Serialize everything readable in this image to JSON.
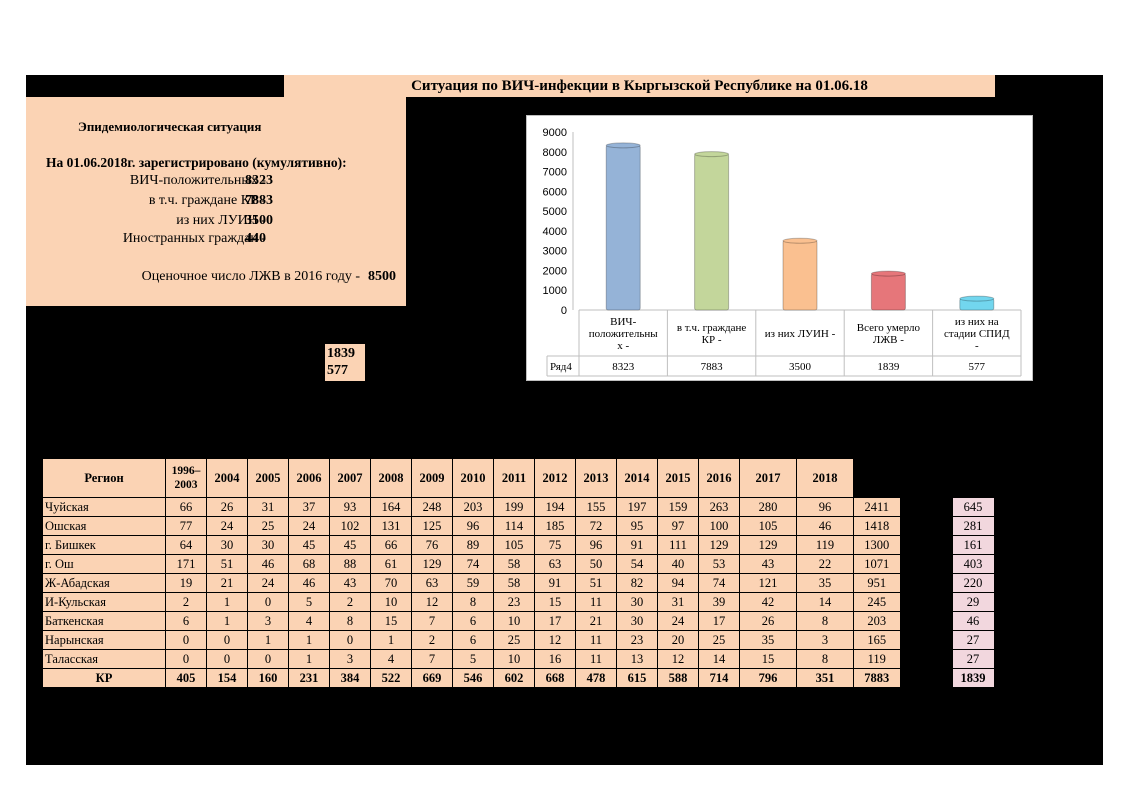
{
  "title": "Ситуация по ВИЧ-инфекции в Кыргызской Республике на 01.06.18",
  "epi": {
    "heading": "Эпидемиологическая ситуация",
    "subheading": "На 01.06.2018г. зарегистрировано (кумулятивно):",
    "rows": [
      {
        "label": "ВИЧ-положительных -",
        "value": "8323"
      },
      {
        "label": "в т.ч. граждане КР -",
        "value": "7883"
      },
      {
        "label": "из них ЛУИН -",
        "value": "3500"
      },
      {
        "label": "Иностранных граждан -",
        "value": "440"
      }
    ],
    "estimate_label": "Оценочное число ЛЖВ в 2016 году -",
    "estimate_value": "8500"
  },
  "mini": {
    "line1": "1839",
    "line2": "577"
  },
  "chart_data": {
    "type": "bar",
    "categories": [
      "ВИЧ-положительных -",
      "в т.ч. граждане КР -",
      "из них ЛУИН -",
      "Всего умерло ЛЖВ -",
      "из них на стадии СПИД -"
    ],
    "category_lines": [
      [
        "ВИЧ-",
        "положительны",
        "х -"
      ],
      [
        "в т.ч. граждане",
        "КР -"
      ],
      [
        "из них ЛУИН -"
      ],
      [
        "Всего умерло",
        "ЛЖВ -"
      ],
      [
        "из них на",
        "стадии СПИД",
        "-"
      ]
    ],
    "series": [
      {
        "name": "Ряд4",
        "values": [
          8323,
          7883,
          3500,
          1839,
          577
        ]
      }
    ],
    "value_labels": [
      "8323",
      "7883",
      "3500",
      "1839",
      "577"
    ],
    "colors": [
      "#95b3d7",
      "#c3d69b",
      "#fac090",
      "#e6767a",
      "#72d6ee"
    ],
    "ylim": [
      0,
      9000
    ],
    "yticks": [
      "0",
      "1000",
      "2000",
      "3000",
      "4000",
      "5000",
      "6000",
      "7000",
      "8000",
      "9000"
    ],
    "grid": false,
    "legend": "data-table"
  },
  "table": {
    "headers": [
      "Регион",
      "1996–2003",
      "2004",
      "2005",
      "2006",
      "2007",
      "2008",
      "2009",
      "2010",
      "2011",
      "2012",
      "2013",
      "2014",
      "2015",
      "2016",
      "2017",
      "2018"
    ],
    "rows": [
      {
        "region": "Чуйская",
        "values": [
          "66",
          "26",
          "31",
          "37",
          "93",
          "164",
          "248",
          "203",
          "199",
          "194",
          "155",
          "197",
          "159",
          "263",
          "280",
          "96"
        ],
        "total": "2411",
        "deaths": "645"
      },
      {
        "region": "Ошская",
        "values": [
          "77",
          "24",
          "25",
          "24",
          "102",
          "131",
          "125",
          "96",
          "114",
          "185",
          "72",
          "95",
          "97",
          "100",
          "105",
          "46"
        ],
        "total": "1418",
        "deaths": "281"
      },
      {
        "region": "г. Бишкек",
        "values": [
          "64",
          "30",
          "30",
          "45",
          "45",
          "66",
          "76",
          "89",
          "105",
          "75",
          "96",
          "91",
          "111",
          "129",
          "129",
          "119"
        ],
        "total": "1300",
        "deaths": "161"
      },
      {
        "region": "г. Ош",
        "values": [
          "171",
          "51",
          "46",
          "68",
          "88",
          "61",
          "129",
          "74",
          "58",
          "63",
          "50",
          "54",
          "40",
          "53",
          "43",
          "22"
        ],
        "total": "1071",
        "deaths": "403"
      },
      {
        "region": "Ж-Абадская",
        "values": [
          "19",
          "21",
          "24",
          "46",
          "43",
          "70",
          "63",
          "59",
          "58",
          "91",
          "51",
          "82",
          "94",
          "74",
          "121",
          "35"
        ],
        "total": "951",
        "deaths": "220"
      },
      {
        "region": "И-Кульская",
        "values": [
          "2",
          "1",
          "0",
          "5",
          "2",
          "10",
          "12",
          "8",
          "23",
          "15",
          "11",
          "30",
          "31",
          "39",
          "42",
          "14"
        ],
        "total": "245",
        "deaths": "29"
      },
      {
        "region": "Баткенская",
        "values": [
          "6",
          "1",
          "3",
          "4",
          "8",
          "15",
          "7",
          "6",
          "10",
          "17",
          "21",
          "30",
          "24",
          "17",
          "26",
          "8"
        ],
        "total": "203",
        "deaths": "46"
      },
      {
        "region": "Нарынская",
        "values": [
          "0",
          "0",
          "1",
          "1",
          "0",
          "1",
          "2",
          "6",
          "25",
          "12",
          "11",
          "23",
          "20",
          "25",
          "35",
          "3"
        ],
        "total": "165",
        "deaths": "27"
      },
      {
        "region": "Таласская",
        "values": [
          "0",
          "0",
          "0",
          "1",
          "3",
          "4",
          "7",
          "5",
          "10",
          "16",
          "11",
          "13",
          "12",
          "14",
          "15",
          "8"
        ],
        "total": "119",
        "deaths": "27"
      }
    ],
    "total_row": {
      "region": "КР",
      "values": [
        "405",
        "154",
        "160",
        "231",
        "384",
        "522",
        "669",
        "546",
        "602",
        "668",
        "478",
        "615",
        "588",
        "714",
        "796",
        "351"
      ],
      "total": "7883",
      "deaths": "1839"
    }
  }
}
